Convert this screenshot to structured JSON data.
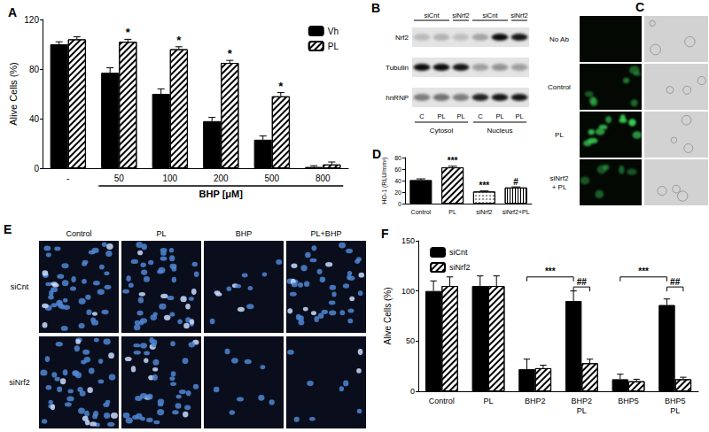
{
  "chart_data": [
    {
      "type": "bar",
      "title": "A",
      "categories": [
        "-",
        "50",
        "100",
        "200",
        "500",
        "800"
      ],
      "x_label": "BHP [μM]",
      "y_label": "Alive Cells (%)",
      "series": [
        {
          "name": "Vh",
          "color": "#000000",
          "values": [
            100,
            77,
            60,
            38,
            23,
            1
          ],
          "errors": [
            2,
            4,
            4,
            3,
            3,
            1
          ]
        },
        {
          "name": "PL",
          "color": "#ffffff",
          "values": [
            104,
            102,
            96,
            85,
            58,
            3
          ],
          "errors": [
            2,
            2,
            2,
            2,
            3,
            2
          ]
        }
      ],
      "ylim": [
        0,
        120
      ],
      "yticks": [
        0,
        40,
        80,
        120
      ],
      "grid": false,
      "legend": "top-right",
      "annotations": [
        {
          "text": "*",
          "category": "50",
          "series": "PL"
        },
        {
          "text": "*",
          "category": "100",
          "series": "PL"
        },
        {
          "text": "*",
          "category": "200",
          "series": "PL"
        },
        {
          "text": "*",
          "category": "500",
          "series": "PL"
        }
      ]
    },
    {
      "type": "bar",
      "title": "D",
      "categories": [
        "Control",
        "PL",
        "siNrf2",
        "siNrf2+PL"
      ],
      "y_label": "HO-1 (RLU/mm²)",
      "values": [
        41,
        63,
        21,
        28
      ],
      "errors": [
        2,
        2,
        1,
        1
      ],
      "colors": [
        "#000000",
        "#ffffff",
        "#ffffff",
        "#ffffff"
      ],
      "ylim": [
        0,
        80
      ],
      "yticks": [
        0,
        20,
        40,
        60,
        80
      ],
      "grid": false,
      "annotations": [
        {
          "text": "***",
          "category": "PL"
        },
        {
          "text": "***",
          "category": "siNrf2"
        },
        {
          "text": "#",
          "category": "siNrf2+PL"
        }
      ]
    },
    {
      "type": "bar",
      "title": "F",
      "categories": [
        "Control",
        "PL",
        "BHP2",
        "BHP2\nPL",
        "BHP5",
        "BHP5\nPL"
      ],
      "y_label": "Alive Cells (%)",
      "series": [
        {
          "name": "siCnt",
          "color": "#000000",
          "values": [
            100,
            105,
            22,
            90,
            12,
            86
          ],
          "errors": [
            10,
            10,
            10,
            10,
            5,
            6
          ]
        },
        {
          "name": "siNrf2",
          "color": "#ffffff",
          "values": [
            105,
            105,
            23,
            28,
            10,
            12
          ],
          "errors": [
            9,
            10,
            3,
            4,
            2,
            2
          ]
        }
      ],
      "ylim": [
        0,
        150
      ],
      "yticks": [
        0,
        50,
        100,
        150
      ],
      "grid": false,
      "legend": "top-left",
      "annotations": [
        {
          "text": "***",
          "from": {
            "category": "BHP2",
            "series": "siCnt"
          },
          "to": {
            "category": "BHP2\nPL",
            "series": "siCnt"
          },
          "y": 114
        },
        {
          "text": "##",
          "from": {
            "category": "BHP2\nPL",
            "series": "siCnt"
          },
          "to": {
            "category": "BHP2\nPL",
            "series": "siNrf2"
          },
          "y": 104
        },
        {
          "text": "***",
          "from": {
            "category": "BHP5",
            "series": "siCnt"
          },
          "to": {
            "category": "BHP5\nPL",
            "series": "siCnt"
          },
          "y": 114
        },
        {
          "text": "##",
          "from": {
            "category": "BHP5\nPL",
            "series": "siCnt"
          },
          "to": {
            "category": "BHP5\nPL",
            "series": "siNrf2"
          },
          "y": 104
        }
      ]
    }
  ],
  "blot": {
    "title": "B",
    "treatments": [
      "siCnt",
      "siNrf2",
      "siCnt",
      "siNrf2"
    ],
    "rows": [
      "Nrf2",
      "Tubulin",
      "hnRNP"
    ],
    "lanes": [
      "C",
      "PL",
      "PL",
      "C",
      "PL",
      "PL"
    ],
    "fractions": [
      "Cytosol",
      "Nucleus"
    ]
  },
  "immunofluorescence": {
    "title": "C",
    "rows": [
      "No Ab",
      "Control",
      "PL",
      "siNrf2\n+ PL"
    ]
  },
  "nuclei_images": {
    "title": "E",
    "columns": [
      "Control",
      "PL",
      "BHP",
      "PL+BHP"
    ],
    "rows": [
      "siCnt",
      "siNrf2"
    ]
  }
}
